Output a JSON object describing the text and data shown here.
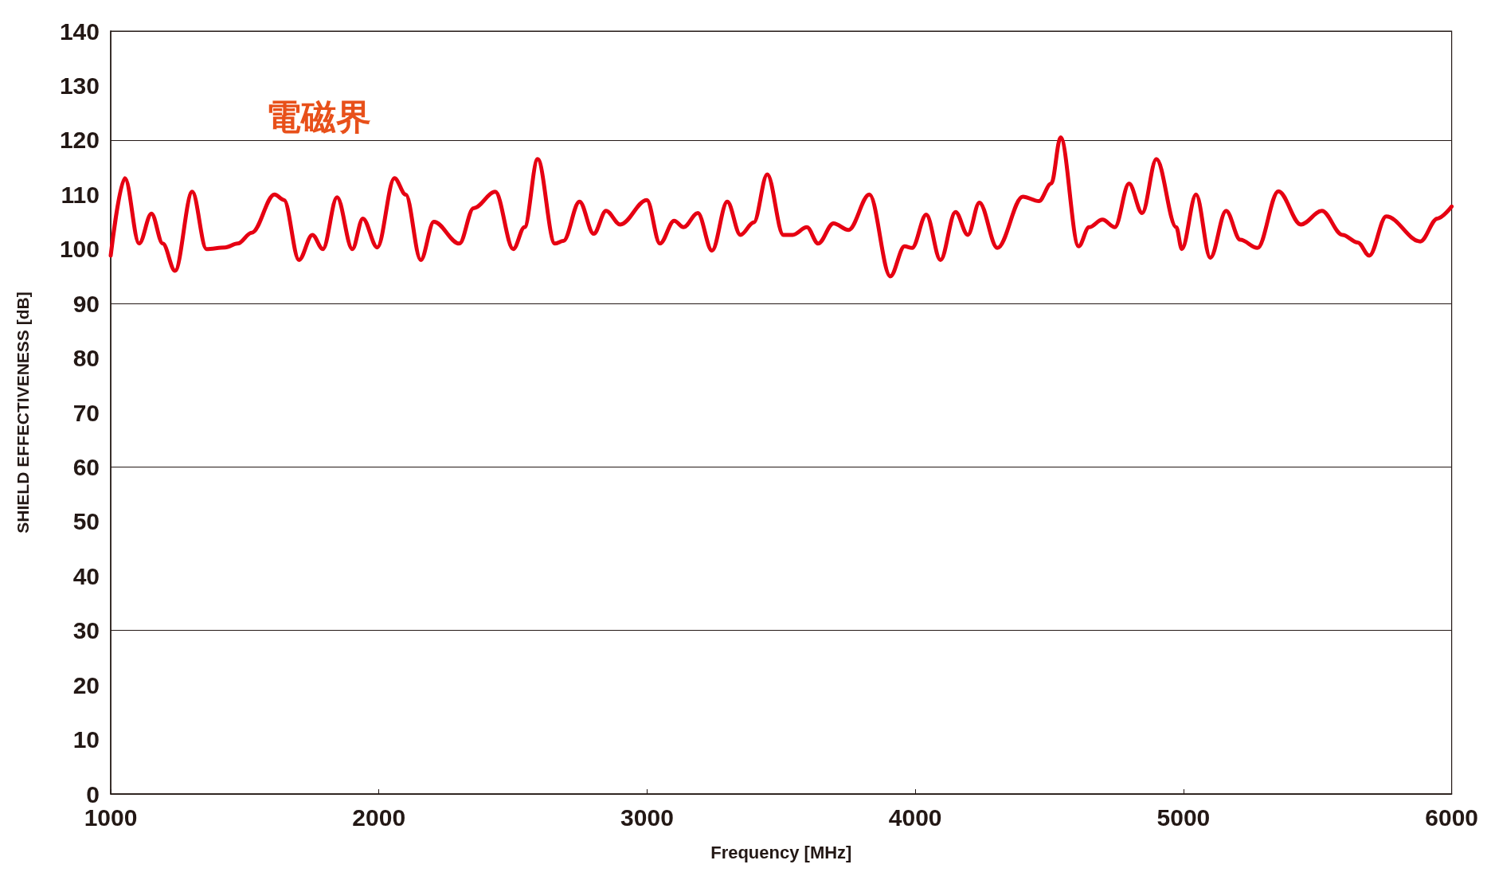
{
  "chart_data": {
    "type": "line",
    "xlabel": "Frequency [MHz]",
    "ylabel": "SHIELD EFFECTIVENESS [dB]",
    "annotations": [
      "電磁界"
    ],
    "x": [
      1000,
      1053,
      1106,
      1152,
      1194,
      1240,
      1304,
      1357,
      1427,
      1473,
      1526,
      1611,
      1646,
      1702,
      1752,
      1791,
      1844,
      1901,
      1940,
      1994,
      2058,
      2100,
      2156,
      2205,
      2300,
      2353,
      2434,
      2501,
      2543,
      2592,
      2656,
      2688,
      2748,
      2801,
      2847,
      2900,
      2999,
      3048,
      3101,
      3136,
      3189,
      3242,
      3299,
      3348,
      3398,
      3448,
      3508,
      3543,
      3596,
      3638,
      3695,
      3751,
      3829,
      3907,
      3960,
      3988,
      4041,
      4094,
      4150,
      4196,
      4239,
      4306,
      4401,
      4461,
      4507,
      4542,
      4609,
      4648,
      4698,
      4744,
      4797,
      4846,
      4899,
      4973,
      4994,
      5047,
      5100,
      5159,
      5212,
      5276,
      5354,
      5438,
      5516,
      5593,
      5650,
      5693,
      5756,
      5883,
      5947,
      6000
    ],
    "series": [
      {
        "color": "#e60012",
        "values": [
          98.8,
          113,
          101,
          106.5,
          101,
          96,
          110.5,
          100,
          100.3,
          101,
          103,
          110,
          109,
          98,
          102.6,
          100,
          109.5,
          100,
          105.6,
          100.3,
          113,
          110,
          98,
          105,
          101,
          107.5,
          110.5,
          100,
          104,
          116.5,
          101,
          101.5,
          108.7,
          102.8,
          107,
          104.5,
          109,
          101,
          105.2,
          104,
          106.6,
          99.7,
          108.7,
          102.6,
          104.9,
          113.7,
          102.6,
          102.6,
          104,
          101,
          104.7,
          103.5,
          110,
          95,
          100.5,
          100.2,
          106.3,
          98,
          106.8,
          102.6,
          108.5,
          100.2,
          109.6,
          108.8,
          112,
          120.5,
          100.5,
          104,
          105.4,
          104,
          112,
          106.6,
          116.5,
          104,
          100,
          110,
          98.4,
          107,
          101.7,
          100.2,
          110.6,
          104.5,
          107,
          102.6,
          101.2,
          98.8,
          106,
          101.4,
          105.6,
          107.8
        ]
      }
    ],
    "xlim": [
      1000,
      6000
    ],
    "xticks": [
      1000,
      2000,
      3000,
      4000,
      5000,
      6000
    ],
    "ylim": [
      0,
      140
    ],
    "yticks": [
      0,
      10,
      20,
      30,
      40,
      50,
      60,
      70,
      80,
      90,
      100,
      110,
      120,
      130,
      140
    ],
    "grid": "y",
    "marker": "none",
    "line_style": "solid"
  }
}
